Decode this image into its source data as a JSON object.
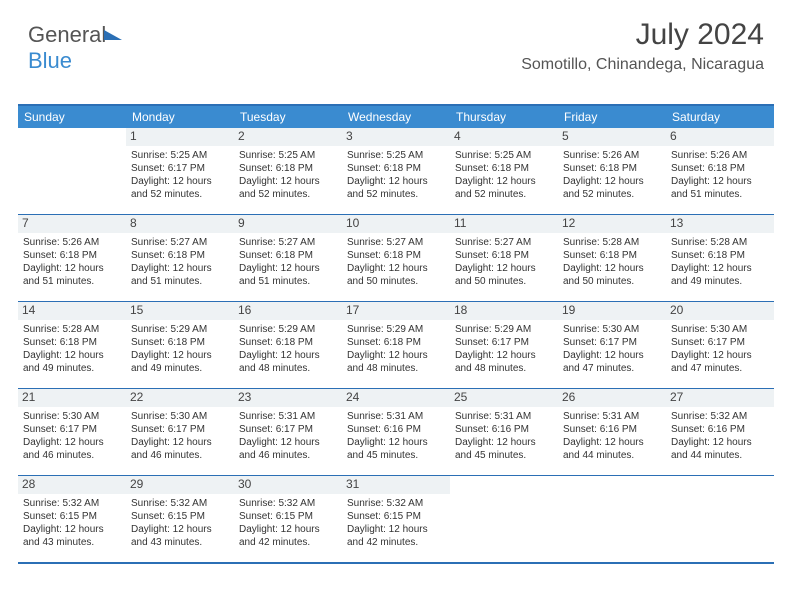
{
  "brand": {
    "part1": "General",
    "part2": "Blue"
  },
  "title": "July 2024",
  "subtitle": "Somotillo, Chinandega, Nicaragua",
  "colors": {
    "header_bg": "#3a8bd0",
    "border": "#2b6fb5",
    "daynum_bg": "#eef2f4",
    "text": "#333333",
    "page_bg": "#ffffff"
  },
  "typography": {
    "title_fontsize": 30,
    "subtitle_fontsize": 16,
    "dow_fontsize": 12,
    "body_fontsize": 10
  },
  "dow": [
    "Sunday",
    "Monday",
    "Tuesday",
    "Wednesday",
    "Thursday",
    "Friday",
    "Saturday"
  ],
  "weeks": [
    [
      {
        "n": ""
      },
      {
        "n": "1",
        "sr": "Sunrise: 5:25 AM",
        "ss": "Sunset: 6:17 PM",
        "d1": "Daylight: 12 hours",
        "d2": "and 52 minutes."
      },
      {
        "n": "2",
        "sr": "Sunrise: 5:25 AM",
        "ss": "Sunset: 6:18 PM",
        "d1": "Daylight: 12 hours",
        "d2": "and 52 minutes."
      },
      {
        "n": "3",
        "sr": "Sunrise: 5:25 AM",
        "ss": "Sunset: 6:18 PM",
        "d1": "Daylight: 12 hours",
        "d2": "and 52 minutes."
      },
      {
        "n": "4",
        "sr": "Sunrise: 5:25 AM",
        "ss": "Sunset: 6:18 PM",
        "d1": "Daylight: 12 hours",
        "d2": "and 52 minutes."
      },
      {
        "n": "5",
        "sr": "Sunrise: 5:26 AM",
        "ss": "Sunset: 6:18 PM",
        "d1": "Daylight: 12 hours",
        "d2": "and 52 minutes."
      },
      {
        "n": "6",
        "sr": "Sunrise: 5:26 AM",
        "ss": "Sunset: 6:18 PM",
        "d1": "Daylight: 12 hours",
        "d2": "and 51 minutes."
      }
    ],
    [
      {
        "n": "7",
        "sr": "Sunrise: 5:26 AM",
        "ss": "Sunset: 6:18 PM",
        "d1": "Daylight: 12 hours",
        "d2": "and 51 minutes."
      },
      {
        "n": "8",
        "sr": "Sunrise: 5:27 AM",
        "ss": "Sunset: 6:18 PM",
        "d1": "Daylight: 12 hours",
        "d2": "and 51 minutes."
      },
      {
        "n": "9",
        "sr": "Sunrise: 5:27 AM",
        "ss": "Sunset: 6:18 PM",
        "d1": "Daylight: 12 hours",
        "d2": "and 51 minutes."
      },
      {
        "n": "10",
        "sr": "Sunrise: 5:27 AM",
        "ss": "Sunset: 6:18 PM",
        "d1": "Daylight: 12 hours",
        "d2": "and 50 minutes."
      },
      {
        "n": "11",
        "sr": "Sunrise: 5:27 AM",
        "ss": "Sunset: 6:18 PM",
        "d1": "Daylight: 12 hours",
        "d2": "and 50 minutes."
      },
      {
        "n": "12",
        "sr": "Sunrise: 5:28 AM",
        "ss": "Sunset: 6:18 PM",
        "d1": "Daylight: 12 hours",
        "d2": "and 50 minutes."
      },
      {
        "n": "13",
        "sr": "Sunrise: 5:28 AM",
        "ss": "Sunset: 6:18 PM",
        "d1": "Daylight: 12 hours",
        "d2": "and 49 minutes."
      }
    ],
    [
      {
        "n": "14",
        "sr": "Sunrise: 5:28 AM",
        "ss": "Sunset: 6:18 PM",
        "d1": "Daylight: 12 hours",
        "d2": "and 49 minutes."
      },
      {
        "n": "15",
        "sr": "Sunrise: 5:29 AM",
        "ss": "Sunset: 6:18 PM",
        "d1": "Daylight: 12 hours",
        "d2": "and 49 minutes."
      },
      {
        "n": "16",
        "sr": "Sunrise: 5:29 AM",
        "ss": "Sunset: 6:18 PM",
        "d1": "Daylight: 12 hours",
        "d2": "and 48 minutes."
      },
      {
        "n": "17",
        "sr": "Sunrise: 5:29 AM",
        "ss": "Sunset: 6:18 PM",
        "d1": "Daylight: 12 hours",
        "d2": "and 48 minutes."
      },
      {
        "n": "18",
        "sr": "Sunrise: 5:29 AM",
        "ss": "Sunset: 6:17 PM",
        "d1": "Daylight: 12 hours",
        "d2": "and 48 minutes."
      },
      {
        "n": "19",
        "sr": "Sunrise: 5:30 AM",
        "ss": "Sunset: 6:17 PM",
        "d1": "Daylight: 12 hours",
        "d2": "and 47 minutes."
      },
      {
        "n": "20",
        "sr": "Sunrise: 5:30 AM",
        "ss": "Sunset: 6:17 PM",
        "d1": "Daylight: 12 hours",
        "d2": "and 47 minutes."
      }
    ],
    [
      {
        "n": "21",
        "sr": "Sunrise: 5:30 AM",
        "ss": "Sunset: 6:17 PM",
        "d1": "Daylight: 12 hours",
        "d2": "and 46 minutes."
      },
      {
        "n": "22",
        "sr": "Sunrise: 5:30 AM",
        "ss": "Sunset: 6:17 PM",
        "d1": "Daylight: 12 hours",
        "d2": "and 46 minutes."
      },
      {
        "n": "23",
        "sr": "Sunrise: 5:31 AM",
        "ss": "Sunset: 6:17 PM",
        "d1": "Daylight: 12 hours",
        "d2": "and 46 minutes."
      },
      {
        "n": "24",
        "sr": "Sunrise: 5:31 AM",
        "ss": "Sunset: 6:16 PM",
        "d1": "Daylight: 12 hours",
        "d2": "and 45 minutes."
      },
      {
        "n": "25",
        "sr": "Sunrise: 5:31 AM",
        "ss": "Sunset: 6:16 PM",
        "d1": "Daylight: 12 hours",
        "d2": "and 45 minutes."
      },
      {
        "n": "26",
        "sr": "Sunrise: 5:31 AM",
        "ss": "Sunset: 6:16 PM",
        "d1": "Daylight: 12 hours",
        "d2": "and 44 minutes."
      },
      {
        "n": "27",
        "sr": "Sunrise: 5:32 AM",
        "ss": "Sunset: 6:16 PM",
        "d1": "Daylight: 12 hours",
        "d2": "and 44 minutes."
      }
    ],
    [
      {
        "n": "28",
        "sr": "Sunrise: 5:32 AM",
        "ss": "Sunset: 6:15 PM",
        "d1": "Daylight: 12 hours",
        "d2": "and 43 minutes."
      },
      {
        "n": "29",
        "sr": "Sunrise: 5:32 AM",
        "ss": "Sunset: 6:15 PM",
        "d1": "Daylight: 12 hours",
        "d2": "and 43 minutes."
      },
      {
        "n": "30",
        "sr": "Sunrise: 5:32 AM",
        "ss": "Sunset: 6:15 PM",
        "d1": "Daylight: 12 hours",
        "d2": "and 42 minutes."
      },
      {
        "n": "31",
        "sr": "Sunrise: 5:32 AM",
        "ss": "Sunset: 6:15 PM",
        "d1": "Daylight: 12 hours",
        "d2": "and 42 minutes."
      },
      {
        "n": ""
      },
      {
        "n": ""
      },
      {
        "n": ""
      }
    ]
  ]
}
